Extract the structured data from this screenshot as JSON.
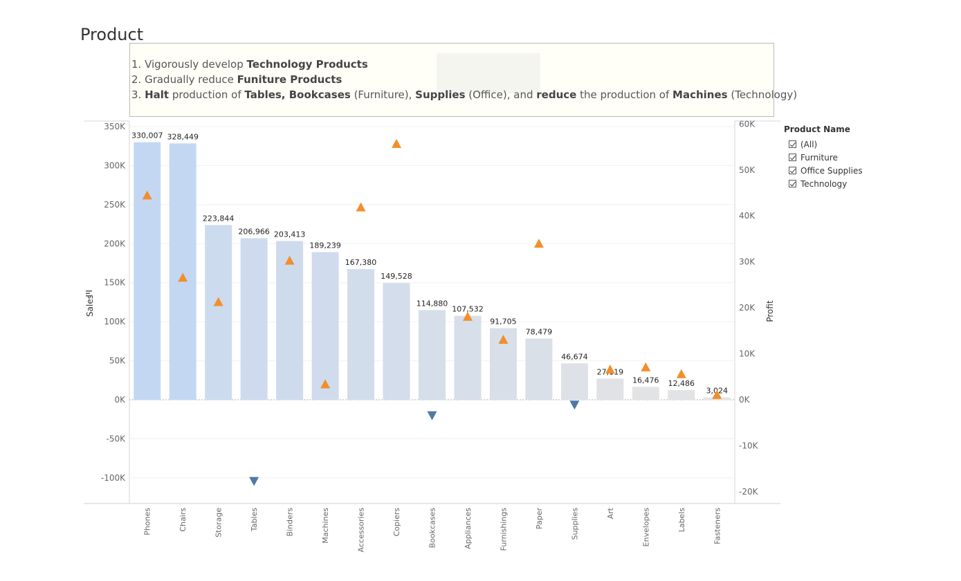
{
  "title": "Product",
  "notes": {
    "line1": {
      "pre": "1. Vigorously develop ",
      "bold": "Technology Products"
    },
    "line2": {
      "pre": "2. Gradually reduce ",
      "bold": "Funiture Products"
    },
    "line3": {
      "b1": "Halt",
      "t1": " production of ",
      "b2": "Tables, Bookcases",
      "t2": " (Furniture), ",
      "b3": "Supplies",
      "t3": " (Office), and ",
      "b4": "reduce",
      "t4": " the production of  ",
      "b5": "Machines",
      "t5": " (Technology)",
      "num": "3. "
    }
  },
  "legend": {
    "title": "Product Name",
    "items": [
      "(All)",
      "Furniture",
      "Office Supplies",
      "Technology"
    ]
  },
  "chart_data": {
    "type": "bar",
    "categories": [
      "Phones",
      "Chairs",
      "Storage",
      "Tables",
      "Binders",
      "Machines",
      "Accessories",
      "Copiers",
      "Bookcases",
      "Appliances",
      "Furnishings",
      "Paper",
      "Supplies",
      "Art",
      "Envelopes",
      "Labels",
      "Fasteners"
    ],
    "series": [
      {
        "name": "Sales",
        "axis": "left",
        "values": [
          330007,
          328449,
          223844,
          206966,
          203413,
          189239,
          167380,
          149528,
          114880,
          107532,
          91705,
          78479,
          46674,
          27119,
          16476,
          12486,
          3024
        ]
      },
      {
        "name": "Profit",
        "axis": "right",
        "values": [
          44500,
          26600,
          21300,
          -17700,
          30300,
          3400,
          41900,
          55700,
          -3400,
          18100,
          13100,
          34000,
          -1100,
          6600,
          7100,
          5600,
          1100
        ]
      }
    ],
    "data_labels": [
      "330,007",
      "328,449",
      "223,844",
      "206,966",
      "203,413",
      "189,239",
      "167,380",
      "149,528",
      "114,880",
      "107,532",
      "91,705",
      "78,479",
      "46,674",
      "27,119",
      "16,476",
      "12,486",
      "3,024"
    ],
    "y_left": {
      "label": "Sales",
      "ylim": [
        -133000,
        350000
      ],
      "ticks": [
        "350K",
        "300K",
        "250K",
        "200K",
        "150K",
        "100K",
        "50K",
        "0K",
        "-50K",
        "-100K"
      ],
      "tick_values": [
        350000,
        300000,
        250000,
        200000,
        150000,
        100000,
        50000,
        0,
        -50000,
        -100000
      ]
    },
    "y_right": {
      "label": "Profit",
      "ylim": [
        -22200,
        59300
      ],
      "ticks": [
        "60K",
        "50K",
        "40K",
        "30K",
        "20K",
        "10K",
        "0K",
        "-10K",
        "-20K"
      ],
      "tick_values": [
        60000,
        50000,
        40000,
        30000,
        20000,
        10000,
        0,
        -10000,
        -20000
      ]
    },
    "grid": true,
    "colors": {
      "bar_high": "#c4d7f2",
      "bar_low": "#e4e4e4",
      "profit_pos": "#f28e2b",
      "profit_neg": "#4e79a7"
    }
  }
}
